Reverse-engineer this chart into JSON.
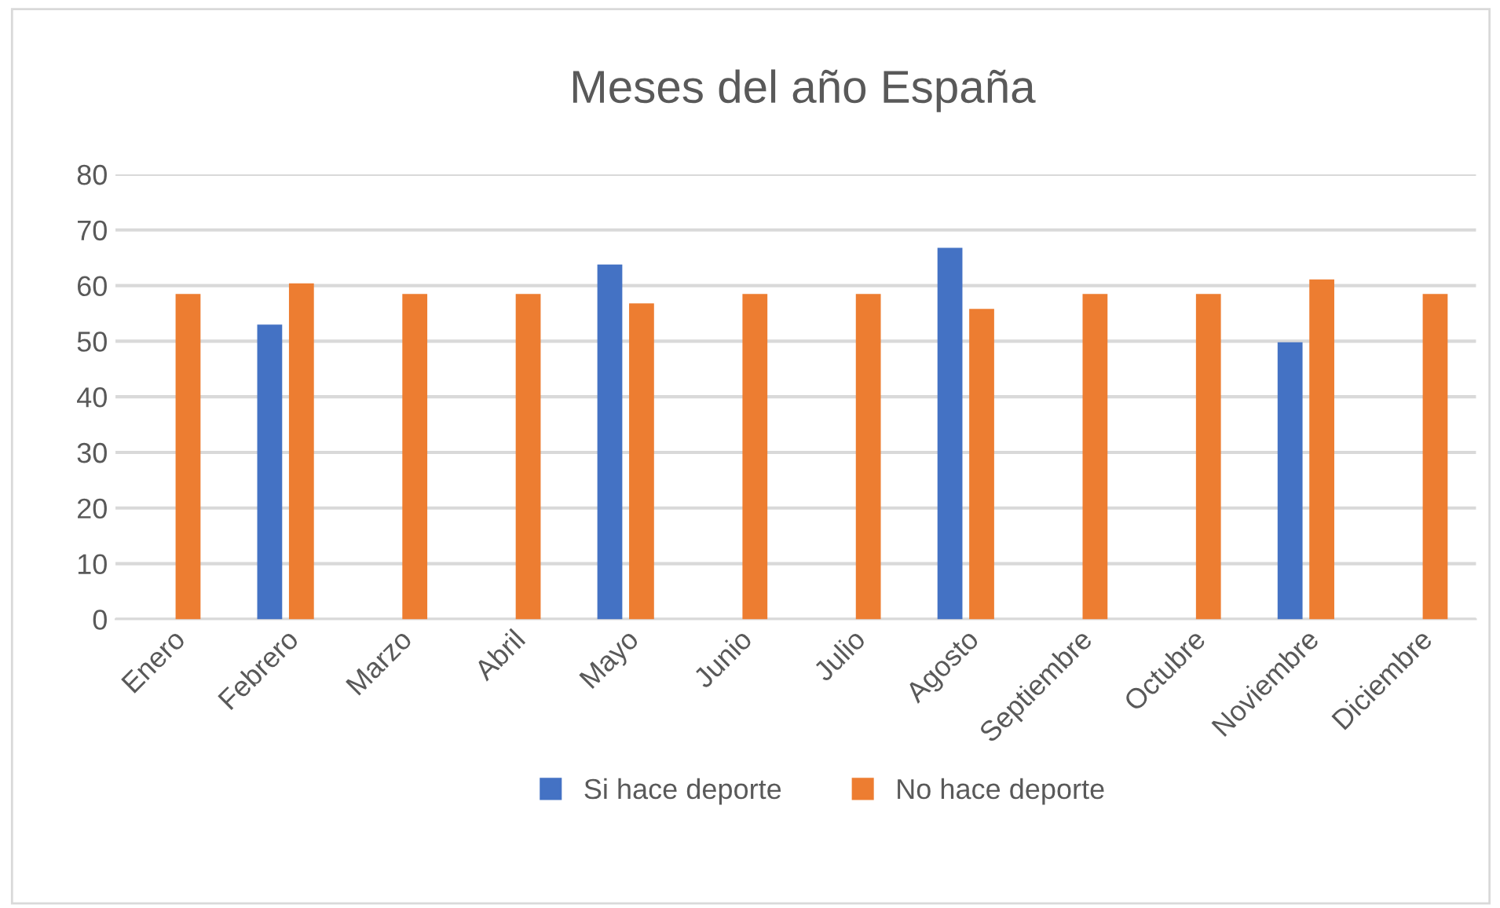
{
  "chart_data": {
    "type": "bar",
    "title": "Meses del año España",
    "categories": [
      "Enero",
      "Febrero",
      "Marzo",
      "Abril",
      "Mayo",
      "Junio",
      "Julio",
      "Agosto",
      "Septiembre",
      "Octubre",
      "Noviembre",
      "Diciembre"
    ],
    "series": [
      {
        "name": "Si hace deporte",
        "color": "#4472c4",
        "values": [
          null,
          53,
          null,
          null,
          63.8,
          null,
          null,
          66.8,
          null,
          null,
          49.8,
          null
        ]
      },
      {
        "name": "No hace deporte",
        "color": "#ed7d31",
        "values": [
          58.5,
          60.4,
          58.5,
          58.5,
          56.8,
          58.5,
          58.5,
          55.8,
          58.5,
          58.5,
          61.1,
          58.5
        ]
      }
    ],
    "ylim": [
      0,
      80
    ],
    "yticks": [
      0,
      10,
      20,
      30,
      40,
      50,
      60,
      70,
      80
    ],
    "grid": "y",
    "legend": "bottom"
  }
}
